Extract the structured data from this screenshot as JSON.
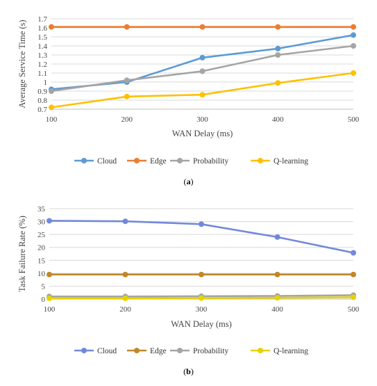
{
  "chart_data": [
    {
      "type": "line",
      "caption_prefix": "(",
      "caption_letter": "a",
      "caption_suffix": ")",
      "title": "",
      "xlabel": "WAN Delay (ms)",
      "ylabel": "Average Service Time (s)",
      "x": [
        100,
        200,
        300,
        400,
        500
      ],
      "ylim": [
        0.7,
        1.7
      ],
      "yticks": [
        "0.7",
        "0.8",
        "0.9",
        "1",
        "1.1",
        "1.2",
        "1.3",
        "1.4",
        "1.5",
        "1.6",
        "1.7"
      ],
      "grid": "horizontal",
      "legend": "bottom",
      "series": [
        {
          "name": "Cloud",
          "color": "#5B9BD5",
          "values": [
            0.92,
            1.0,
            1.27,
            1.37,
            1.52
          ]
        },
        {
          "name": "Edge",
          "color": "#ED7D31",
          "values": [
            1.61,
            1.61,
            1.61,
            1.61,
            1.61
          ]
        },
        {
          "name": "Probability",
          "color": "#A5A5A5",
          "values": [
            0.9,
            1.02,
            1.12,
            1.3,
            1.4
          ]
        },
        {
          "name": "Q-learning",
          "color": "#FFC000",
          "values": [
            0.72,
            0.84,
            0.86,
            0.99,
            1.1
          ]
        }
      ]
    },
    {
      "type": "line",
      "caption_prefix": "(",
      "caption_letter": "b",
      "caption_suffix": ")",
      "title": "",
      "xlabel": "WAN Delay (ms)",
      "ylabel": "Task Failure Rate (%)",
      "x": [
        100,
        200,
        300,
        400,
        500
      ],
      "ylim": [
        0,
        35
      ],
      "yticks": [
        "0",
        "5",
        "10",
        "15",
        "20",
        "25",
        "30",
        "35"
      ],
      "grid": "horizontal",
      "legend": "bottom",
      "series": [
        {
          "name": "Cloud",
          "color": "#7289DA",
          "values": [
            30.3,
            30.1,
            29.0,
            24.0,
            17.9
          ]
        },
        {
          "name": "Edge",
          "color": "#C0872A",
          "values": [
            9.5,
            9.5,
            9.5,
            9.5,
            9.5
          ]
        },
        {
          "name": "Probability",
          "color": "#A5A5A5",
          "values": [
            1.0,
            1.0,
            1.1,
            1.2,
            1.5
          ]
        },
        {
          "name": "Q-learning",
          "color": "#E6D200",
          "values": [
            0.3,
            0.3,
            0.4,
            0.5,
            0.7
          ]
        }
      ]
    }
  ]
}
